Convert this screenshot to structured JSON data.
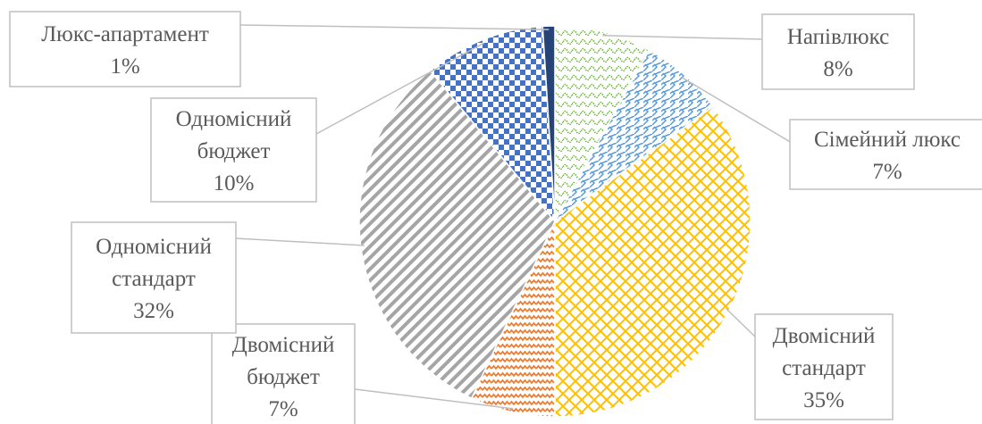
{
  "chart_data": {
    "type": "pie",
    "title": "",
    "slices": [
      {
        "name": "Напівлюкс",
        "value": 8,
        "label": "8%",
        "color": "#70AD47",
        "pattern": "pat-green"
      },
      {
        "name": "Сімейний люкс",
        "value": 7,
        "label": "7%",
        "color": "#5B9BD5",
        "pattern": "pat-blue"
      },
      {
        "name": "Двомісний стандарт",
        "value": 35,
        "label": "35%",
        "color": "#FFC000",
        "pattern": "pat-yellow"
      },
      {
        "name": "Двомісний бюджет",
        "value": 7,
        "label": "7%",
        "color": "#ED7D31",
        "pattern": "pat-orange"
      },
      {
        "name": "Одномісний стандарт",
        "value": 32,
        "label": "32%",
        "color": "#A5A5A5",
        "pattern": "pat-gray"
      },
      {
        "name": "Одномісний бюджет",
        "value": 10,
        "label": "10%",
        "color": "#4472C4",
        "pattern": "pat-check"
      },
      {
        "name": "Люкс-апартамент",
        "value": 1,
        "label": "1%",
        "color": "#264478",
        "pattern": "solid"
      }
    ],
    "legend": "none",
    "data_labels": "category and percentage, callout boxes with leader lines"
  }
}
